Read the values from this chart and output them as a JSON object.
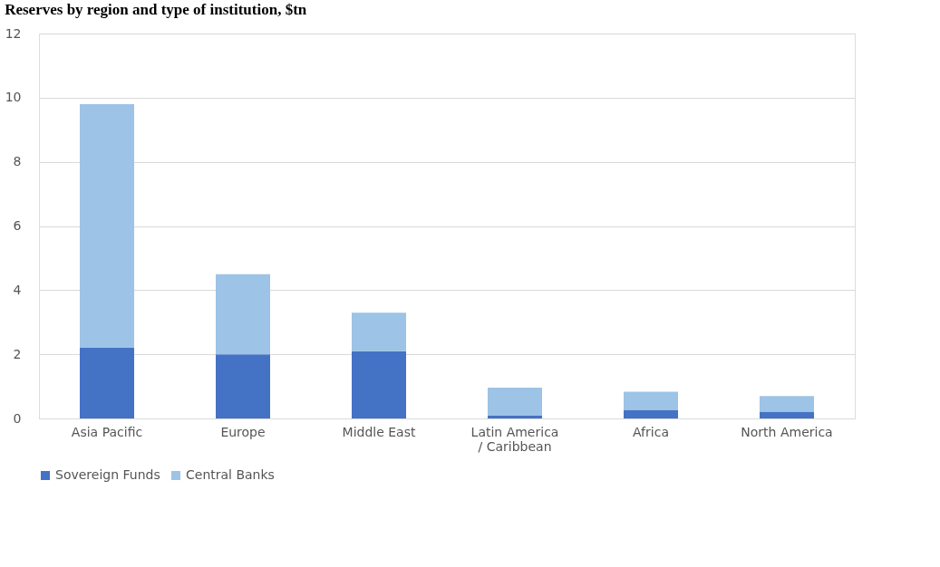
{
  "chart_data": {
    "type": "bar",
    "title": "Reserves by region and type of institution, $tn",
    "categories": [
      "Asia Pacific",
      "Europe",
      "Middle East",
      "Latin America / Caribbean",
      "Africa",
      "North America"
    ],
    "stacked": true,
    "series": [
      {
        "name": "Sovereign Funds",
        "color": "#4472c4",
        "values": [
          2.2,
          2.0,
          2.1,
          0.1,
          0.27,
          0.21
        ]
      },
      {
        "name": "Central Banks",
        "color": "#9dc3e6",
        "values": [
          7.6,
          2.5,
          1.2,
          0.86,
          0.56,
          0.49
        ]
      }
    ],
    "ylim": [
      0,
      12
    ],
    "yticks": [
      0,
      2,
      4,
      6,
      8,
      10,
      12
    ],
    "grid": "y",
    "legend": "bottom"
  }
}
